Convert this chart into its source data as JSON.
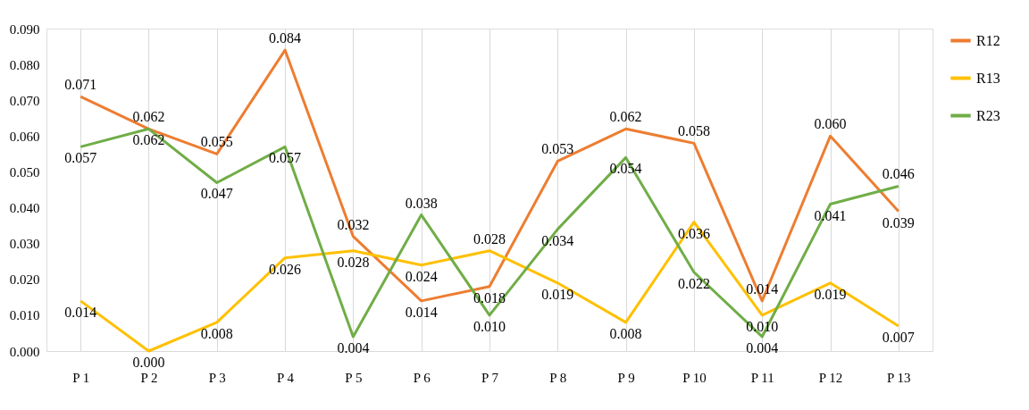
{
  "chart_data": {
    "type": "line",
    "categories": [
      "P 1",
      "P 2",
      "P 3",
      "P 4",
      "P 5",
      "P 6",
      "P 7",
      "P 8",
      "P 9",
      "P 10",
      "P 11",
      "P 12",
      "P 13"
    ],
    "series": [
      {
        "name": "R12",
        "color": "#ed7d31",
        "values": [
          0.071,
          0.062,
          0.055,
          0.084,
          0.032,
          0.014,
          0.018,
          0.053,
          0.062,
          0.058,
          0.014,
          0.06,
          0.039
        ],
        "value_labels": [
          "0.071",
          "0.062",
          "0.055",
          "0.084",
          "0.032",
          "0.014",
          "0.018",
          "0.053",
          "0.062",
          "0.058",
          "0.014",
          "0.060",
          "0.039"
        ]
      },
      {
        "name": "R13",
        "color": "#ffc000",
        "values": [
          0.014,
          0.0,
          0.008,
          0.026,
          0.028,
          0.024,
          0.028,
          0.019,
          0.008,
          0.036,
          0.01,
          0.019,
          0.007
        ],
        "value_labels": [
          "0.014",
          "0.000",
          "0.008",
          "0.026",
          "0.028",
          "0.024",
          "0.028",
          "0.019",
          "0.008",
          "0.036",
          "0.010",
          "0.019",
          "0.007"
        ]
      },
      {
        "name": "R23",
        "color": "#70ad47",
        "values": [
          0.057,
          0.062,
          0.047,
          0.057,
          0.004,
          0.038,
          0.01,
          0.034,
          0.054,
          0.022,
          0.004,
          0.041,
          0.046
        ],
        "value_labels": [
          "0.057",
          "0.062",
          "0.047",
          "0.057",
          "0.004",
          "0.038",
          "0.010",
          "0.034",
          "0.054",
          "0.022",
          "0.004",
          "0.041",
          "0.046"
        ]
      }
    ],
    "ylim": [
      0,
      0.09
    ],
    "yticks": [
      {
        "value": 0,
        "label": "0.000"
      },
      {
        "value": 0.01,
        "label": "0.010"
      },
      {
        "value": 0.02,
        "label": "0.020"
      },
      {
        "value": 0.03,
        "label": "0.030"
      },
      {
        "value": 0.04,
        "label": "0.040"
      },
      {
        "value": 0.05,
        "label": "0.050"
      },
      {
        "value": 0.06,
        "label": "0.060"
      },
      {
        "value": 0.07,
        "label": "0.070"
      },
      {
        "value": 0.08,
        "label": "0.080"
      },
      {
        "value": 0.09,
        "label": "0.090"
      }
    ],
    "grid": "x",
    "legend": "right",
    "marker": "none",
    "line_style": "solid"
  }
}
